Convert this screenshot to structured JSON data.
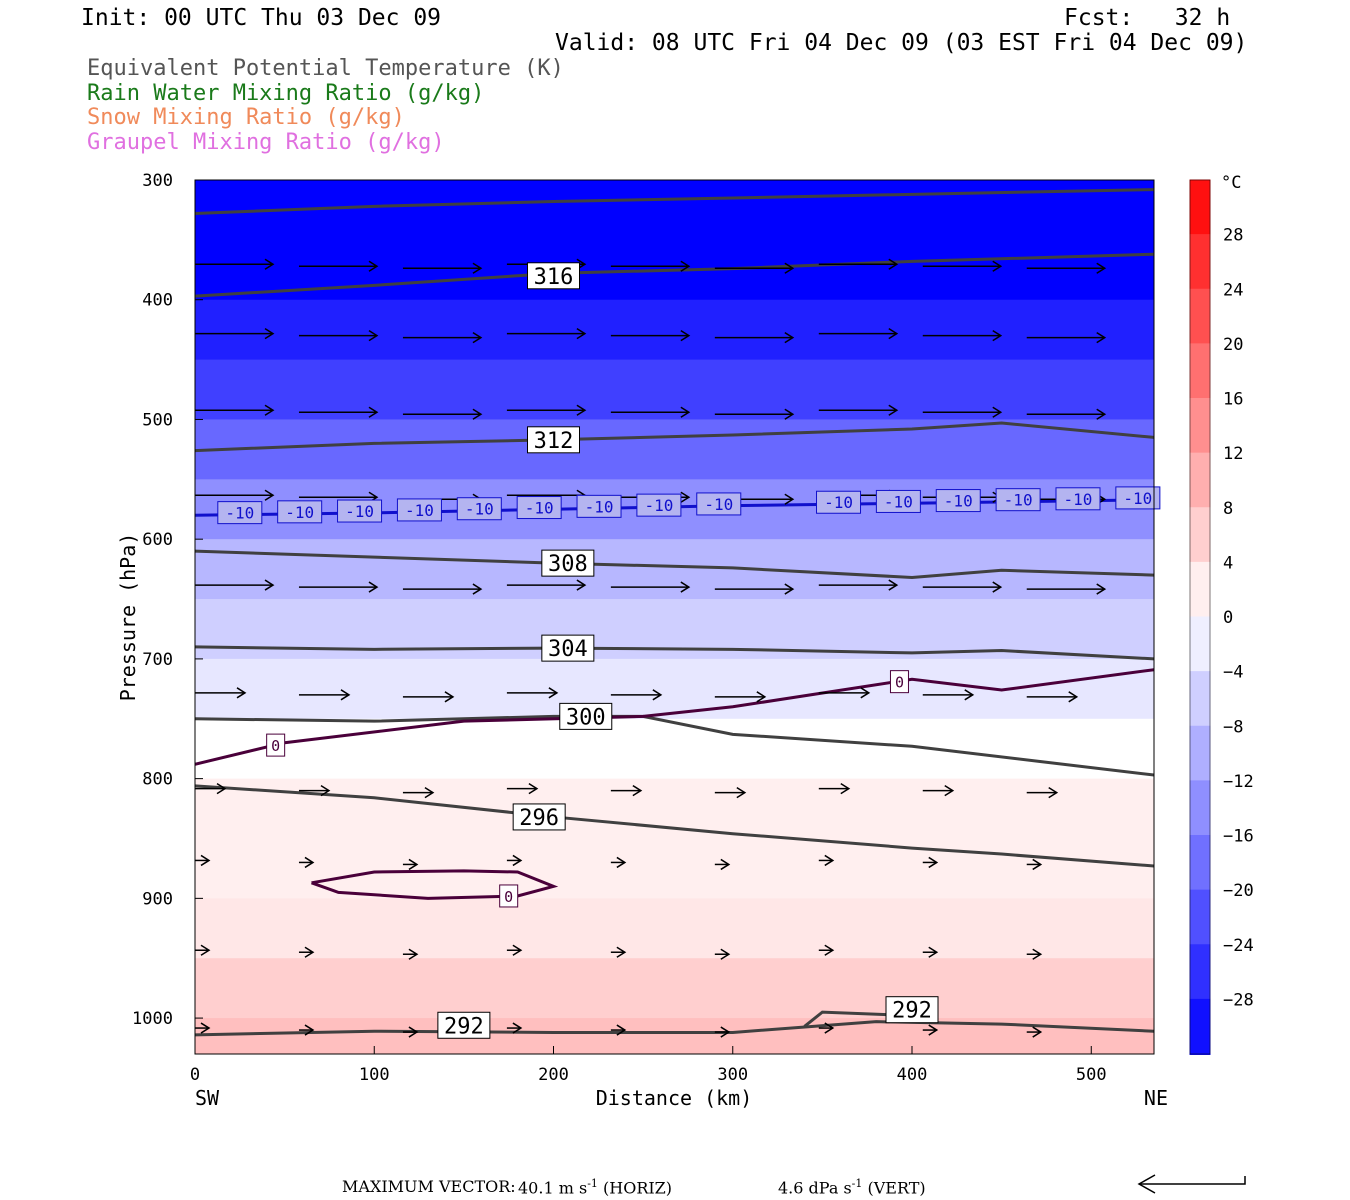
{
  "header": {
    "init": "Init: 00 UTC Thu 03 Dec 09",
    "fcst": "Fcst:   32 h",
    "valid": "Valid: 08 UTC Fri 04 Dec 09 (03 EST Fri 04 Dec 09)"
  },
  "legend": [
    {
      "label": "Equivalent Potential Temperature (K)",
      "color": "#555555"
    },
    {
      "label": "Rain Water Mixing Ratio (g/kg)",
      "color": "#1a7a1a"
    },
    {
      "label": "Snow Mixing Ratio (g/kg)",
      "color": "#f08a5a"
    },
    {
      "label": "Graupel Mixing Ratio (g/kg)",
      "color": "#e070e0"
    }
  ],
  "footer": {
    "label": "MAXIMUM VECTOR:",
    "horiz_value": "40.1 m s",
    "horiz_exp": "-1",
    "horiz_unit": "(HORIZ)",
    "vert_value": "4.6 dPa s",
    "vert_exp": "-1",
    "vert_unit": "(VERT)"
  },
  "chart_data": {
    "type": "heatmap",
    "description_free": true,
    "xlabel": "Distance (km)",
    "ylabel": "Pressure (hPa)",
    "xlim": [
      0,
      535
    ],
    "ylim": [
      1030,
      300
    ],
    "x_ticks": [
      0,
      100,
      200,
      300,
      400,
      500
    ],
    "y_ticks": [
      300,
      400,
      500,
      600,
      700,
      800,
      900,
      1000
    ],
    "x_end_labels": {
      "left": "SW",
      "right": "NE"
    },
    "colorbar": {
      "unit": "°C",
      "ticks": [
        28,
        24,
        20,
        16,
        12,
        8,
        4,
        0,
        -4,
        -8,
        -12,
        -16,
        -20,
        -24,
        -28
      ],
      "range": [
        -32,
        32
      ]
    },
    "temperature_bands_by_pressure": [
      {
        "p": 300,
        "t": -36
      },
      {
        "p": 400,
        "t": -28
      },
      {
        "p": 450,
        "t": -24
      },
      {
        "p": 500,
        "t": -19
      },
      {
        "p": 550,
        "t": -14
      },
      {
        "p": 600,
        "t": -9
      },
      {
        "p": 650,
        "t": -6
      },
      {
        "p": 700,
        "t": -3
      },
      {
        "p": 750,
        "t": 0
      },
      {
        "p": 800,
        "t": 2
      },
      {
        "p": 900,
        "t": 3
      },
      {
        "p": 950,
        "t": 6
      },
      {
        "p": 1000,
        "t": 8
      },
      {
        "p": 1030,
        "t": 9
      }
    ],
    "theta_e_contours": [
      {
        "label": "316",
        "label_x": 200,
        "label_p": 380,
        "points": [
          [
            0,
            397
          ],
          [
            100,
            388
          ],
          [
            200,
            378
          ],
          [
            300,
            374
          ],
          [
            400,
            368
          ],
          [
            535,
            362
          ]
        ]
      },
      {
        "label": "",
        "label_x": null,
        "label_p": null,
        "points": [
          [
            0,
            328
          ],
          [
            100,
            322
          ],
          [
            200,
            318
          ],
          [
            300,
            315
          ],
          [
            400,
            312
          ],
          [
            535,
            308
          ]
        ]
      },
      {
        "label": "312",
        "label_x": 200,
        "label_p": 517,
        "points": [
          [
            0,
            526
          ],
          [
            100,
            520
          ],
          [
            200,
            517
          ],
          [
            300,
            513
          ],
          [
            400,
            508
          ],
          [
            450,
            503
          ],
          [
            535,
            515
          ]
        ]
      },
      {
        "label": "308",
        "label_x": 208,
        "label_p": 620,
        "points": [
          [
            0,
            610
          ],
          [
            100,
            615
          ],
          [
            200,
            620
          ],
          [
            300,
            624
          ],
          [
            400,
            632
          ],
          [
            450,
            626
          ],
          [
            535,
            630
          ]
        ]
      },
      {
        "label": "304",
        "label_x": 208,
        "label_p": 691,
        "points": [
          [
            0,
            690
          ],
          [
            100,
            692
          ],
          [
            200,
            691
          ],
          [
            300,
            692
          ],
          [
            400,
            695
          ],
          [
            450,
            693
          ],
          [
            535,
            700
          ]
        ]
      },
      {
        "label": "300",
        "label_x": 218,
        "label_p": 748,
        "points": [
          [
            0,
            750
          ],
          [
            100,
            752
          ],
          [
            200,
            748
          ],
          [
            250,
            748
          ],
          [
            300,
            763
          ],
          [
            400,
            773
          ],
          [
            535,
            797
          ]
        ]
      },
      {
        "label": "296",
        "label_x": 192,
        "label_p": 832,
        "points": [
          [
            0,
            806
          ],
          [
            100,
            816
          ],
          [
            200,
            832
          ],
          [
            300,
            846
          ],
          [
            400,
            858
          ],
          [
            450,
            863
          ],
          [
            535,
            873
          ]
        ]
      },
      {
        "label": "292",
        "label_x": 150,
        "label_p": 1006,
        "points": [
          [
            0,
            1014
          ],
          [
            100,
            1011
          ],
          [
            200,
            1012
          ],
          [
            300,
            1012
          ],
          [
            380,
            1003
          ],
          [
            450,
            1005
          ],
          [
            535,
            1011
          ]
        ]
      },
      {
        "label": "292",
        "label_x": 400,
        "label_p": 993,
        "points": [
          [
            340,
            1007
          ],
          [
            350,
            995
          ],
          [
            400,
            998
          ]
        ]
      }
    ],
    "temperature_contours": [
      {
        "label": "-10",
        "color": "#1010cc",
        "points": [
          [
            0,
            580
          ],
          [
            100,
            578
          ],
          [
            200,
            575
          ],
          [
            300,
            572
          ],
          [
            400,
            570
          ],
          [
            535,
            567
          ]
        ]
      },
      {
        "label": "0",
        "color": "#4a003a",
        "points": [
          [
            0,
            788
          ],
          [
            50,
            770
          ],
          [
            150,
            752
          ],
          [
            250,
            748
          ],
          [
            300,
            740
          ],
          [
            400,
            717
          ],
          [
            450,
            726
          ],
          [
            535,
            709
          ]
        ]
      },
      {
        "label": "0",
        "color": "#4a003a",
        "points": [
          [
            65,
            887
          ],
          [
            100,
            878
          ],
          [
            150,
            877
          ],
          [
            180,
            878
          ],
          [
            200,
            890
          ],
          [
            180,
            898
          ],
          [
            130,
            900
          ],
          [
            80,
            895
          ],
          [
            65,
            887
          ]
        ]
      }
    ],
    "wind_vector_rows_hPa": [
      372,
      430,
      494,
      565,
      640,
      730,
      810,
      870,
      945,
      1010
    ]
  }
}
